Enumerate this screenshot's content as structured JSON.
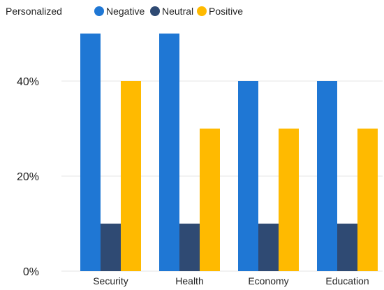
{
  "chart_data": {
    "type": "bar",
    "legend_title": "Personalized",
    "categories": [
      "Security",
      "Health",
      "Economy",
      "Education"
    ],
    "series": [
      {
        "name": "Negative",
        "color": "#1f77d4",
        "values": [
          50,
          50,
          40,
          40
        ]
      },
      {
        "name": "Neutral",
        "color": "#2f4a73",
        "values": [
          10,
          10,
          10,
          10
        ]
      },
      {
        "name": "Positive",
        "color": "#ffba00",
        "values": [
          40,
          30,
          30,
          30
        ]
      }
    ],
    "y_ticks": [
      {
        "value": 0,
        "label": "0%"
      },
      {
        "value": 20,
        "label": "20%"
      },
      {
        "value": 40,
        "label": "40%"
      }
    ],
    "ylim": [
      0,
      50
    ],
    "grid": true,
    "legend_position": "top-left"
  }
}
